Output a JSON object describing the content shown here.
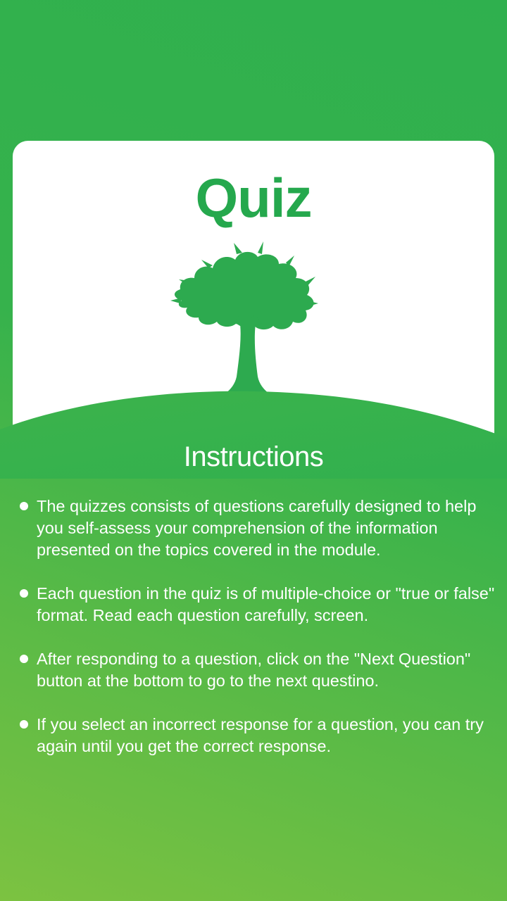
{
  "card": {
    "title": "Quiz",
    "image": "tree-icon"
  },
  "instructions": {
    "title": "Instructions",
    "items": [
      "The quizzes consists of questions carefully designed to help you self-assess your comprehension of the information presented on the topics covered in the module.",
      "Each question in the quiz is of multiple-choice or \"true or false\" format. Read each question carefully, screen.",
      "After responding to a question, click on the \"Next Question\" button at the bottom to go to the next questino.",
      "If you select an incorrect response for a question, you can try again until you get the correct response."
    ]
  },
  "colors": {
    "accent": "#25a84d",
    "background_top": "#2fb04e",
    "background_bottom": "#7cc241",
    "card": "#ffffff"
  }
}
